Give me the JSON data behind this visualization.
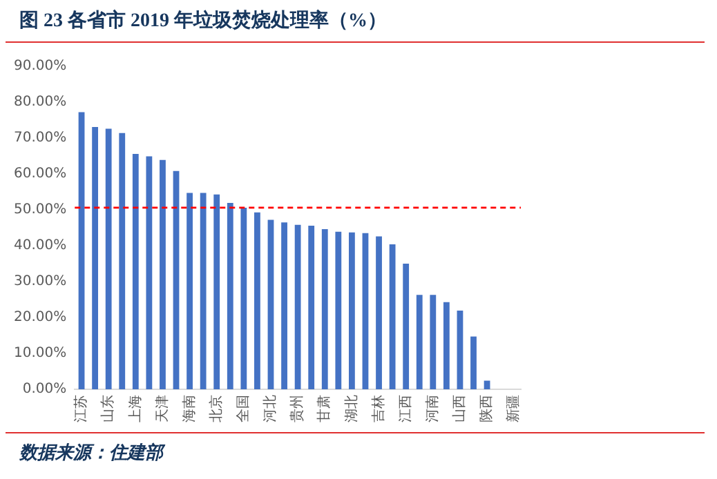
{
  "chart_data": {
    "type": "bar",
    "title": "图 23 各省市 2019 年垃圾焚烧处理率（%）",
    "categories": [
      "江苏",
      null,
      "山东",
      null,
      "上海",
      null,
      "天津",
      null,
      "海南",
      null,
      "北京",
      null,
      "全国",
      null,
      "河北",
      null,
      "贵州",
      null,
      "甘肃",
      null,
      "湖北",
      null,
      "吉林",
      null,
      "江西",
      null,
      "河南",
      null,
      "山西",
      null,
      "陕西",
      null,
      "新疆"
    ],
    "values": [
      77.2,
      73.1,
      72.6,
      71.4,
      65.6,
      64.9,
      63.9,
      60.8,
      54.7,
      54.7,
      54.3,
      51.9,
      50.6,
      49.3,
      47.2,
      46.5,
      45.8,
      45.6,
      44.6,
      43.9,
      43.7,
      43.5,
      42.6,
      40.4,
      35.0,
      26.3,
      26.3,
      24.3,
      21.9,
      14.7,
      2.4,
      0,
      0
    ],
    "color": "#4472c4",
    "ylim": [
      0,
      90
    ],
    "yticks": [
      {
        "value": 0,
        "label": "0.00%"
      },
      {
        "value": 10,
        "label": "10.00%"
      },
      {
        "value": 20,
        "label": "20.00%"
      },
      {
        "value": 30,
        "label": "30.00%"
      },
      {
        "value": 40,
        "label": "40.00%"
      },
      {
        "value": 50,
        "label": "50.00%"
      },
      {
        "value": 60,
        "label": "60.00%"
      },
      {
        "value": 70,
        "label": "70.00%"
      },
      {
        "value": 80,
        "label": "80.00%"
      },
      {
        "value": 90,
        "label": "90.00%"
      }
    ],
    "grid": false,
    "legend": false,
    "ref_lines": [
      {
        "axis": "y",
        "value": 50.6,
        "color": "#ff0000",
        "line_style": "dashed"
      }
    ],
    "annotations": [
      "数据来源：住建部"
    ]
  }
}
